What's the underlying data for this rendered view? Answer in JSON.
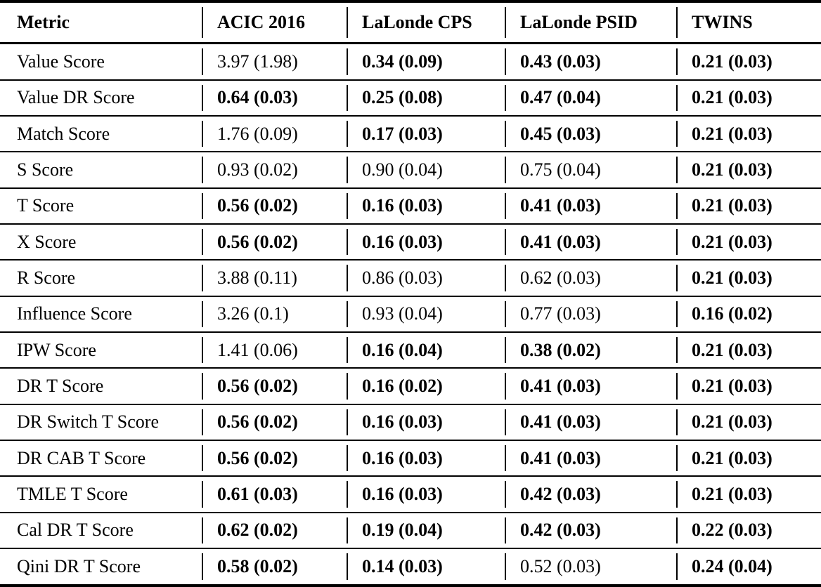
{
  "colors": {
    "background": "#ffffff",
    "text": "#000000",
    "rule": "#000000"
  },
  "table": {
    "columns": [
      "Metric",
      "ACIC 2016",
      "LaLonde CPS",
      "LaLonde PSID",
      "TWINS"
    ],
    "rows": [
      {
        "metric": "Value Score",
        "cells": [
          {
            "text": "3.97 (1.98)",
            "bold": false
          },
          {
            "text": "0.34 (0.09)",
            "bold": true
          },
          {
            "text": "0.43 (0.03)",
            "bold": true
          },
          {
            "text": "0.21 (0.03)",
            "bold": true
          }
        ]
      },
      {
        "metric": "Value DR Score",
        "cells": [
          {
            "text": "0.64 (0.03)",
            "bold": true
          },
          {
            "text": "0.25 (0.08)",
            "bold": true
          },
          {
            "text": "0.47 (0.04)",
            "bold": true
          },
          {
            "text": "0.21 (0.03)",
            "bold": true
          }
        ]
      },
      {
        "metric": "Match Score",
        "cells": [
          {
            "text": "1.76 (0.09)",
            "bold": false
          },
          {
            "text": "0.17 (0.03)",
            "bold": true
          },
          {
            "text": "0.45 (0.03)",
            "bold": true
          },
          {
            "text": "0.21 (0.03)",
            "bold": true
          }
        ]
      },
      {
        "metric": "S Score",
        "cells": [
          {
            "text": "0.93 (0.02)",
            "bold": false
          },
          {
            "text": "0.90 (0.04)",
            "bold": false
          },
          {
            "text": "0.75 (0.04)",
            "bold": false
          },
          {
            "text": "0.21 (0.03)",
            "bold": true
          }
        ]
      },
      {
        "metric": "T Score",
        "cells": [
          {
            "text": "0.56 (0.02)",
            "bold": true
          },
          {
            "text": "0.16 (0.03)",
            "bold": true
          },
          {
            "text": "0.41 (0.03)",
            "bold": true
          },
          {
            "text": "0.21 (0.03)",
            "bold": true
          }
        ]
      },
      {
        "metric": "X Score",
        "cells": [
          {
            "text": "0.56 (0.02)",
            "bold": true
          },
          {
            "text": "0.16 (0.03)",
            "bold": true
          },
          {
            "text": "0.41 (0.03)",
            "bold": true
          },
          {
            "text": "0.21 (0.03)",
            "bold": true
          }
        ]
      },
      {
        "metric": "R Score",
        "cells": [
          {
            "text": "3.88 (0.11)",
            "bold": false
          },
          {
            "text": "0.86 (0.03)",
            "bold": false
          },
          {
            "text": "0.62 (0.03)",
            "bold": false
          },
          {
            "text": "0.21 (0.03)",
            "bold": true
          }
        ]
      },
      {
        "metric": "Influence Score",
        "cells": [
          {
            "text": "3.26 (0.1)",
            "bold": false
          },
          {
            "text": "0.93 (0.04)",
            "bold": false
          },
          {
            "text": "0.77 (0.03)",
            "bold": false
          },
          {
            "text": "0.16 (0.02)",
            "bold": true
          }
        ]
      },
      {
        "metric": "IPW Score",
        "cells": [
          {
            "text": "1.41 (0.06)",
            "bold": false
          },
          {
            "text": "0.16 (0.04)",
            "bold": true
          },
          {
            "text": "0.38 (0.02)",
            "bold": true
          },
          {
            "text": "0.21 (0.03)",
            "bold": true
          }
        ]
      },
      {
        "metric": "DR T Score",
        "cells": [
          {
            "text": "0.56 (0.02)",
            "bold": true
          },
          {
            "text": "0.16 (0.02)",
            "bold": true
          },
          {
            "text": "0.41 (0.03)",
            "bold": true
          },
          {
            "text": "0.21 (0.03)",
            "bold": true
          }
        ]
      },
      {
        "metric": "DR Switch T Score",
        "cells": [
          {
            "text": "0.56 (0.02)",
            "bold": true
          },
          {
            "text": "0.16 (0.03)",
            "bold": true
          },
          {
            "text": "0.41 (0.03)",
            "bold": true
          },
          {
            "text": "0.21 (0.03)",
            "bold": true
          }
        ]
      },
      {
        "metric": "DR CAB T Score",
        "cells": [
          {
            "text": "0.56 (0.02)",
            "bold": true
          },
          {
            "text": "0.16 (0.03)",
            "bold": true
          },
          {
            "text": "0.41 (0.03)",
            "bold": true
          },
          {
            "text": "0.21 (0.03)",
            "bold": true
          }
        ]
      },
      {
        "metric": "TMLE T Score",
        "cells": [
          {
            "text": "0.61 (0.03)",
            "bold": true
          },
          {
            "text": "0.16 (0.03)",
            "bold": true
          },
          {
            "text": "0.42 (0.03)",
            "bold": true
          },
          {
            "text": "0.21 (0.03)",
            "bold": true
          }
        ]
      },
      {
        "metric": "Cal DR T Score",
        "cells": [
          {
            "text": "0.62 (0.02)",
            "bold": true
          },
          {
            "text": "0.19 (0.04)",
            "bold": true
          },
          {
            "text": "0.42 (0.03)",
            "bold": true
          },
          {
            "text": "0.22 (0.03)",
            "bold": true
          }
        ]
      },
      {
        "metric": "Qini DR T Score",
        "cells": [
          {
            "text": "0.58 (0.02)",
            "bold": true
          },
          {
            "text": "0.14 (0.03)",
            "bold": true
          },
          {
            "text": "0.52 (0.03)",
            "bold": false
          },
          {
            "text": "0.24 (0.04)",
            "bold": true
          }
        ]
      }
    ]
  }
}
